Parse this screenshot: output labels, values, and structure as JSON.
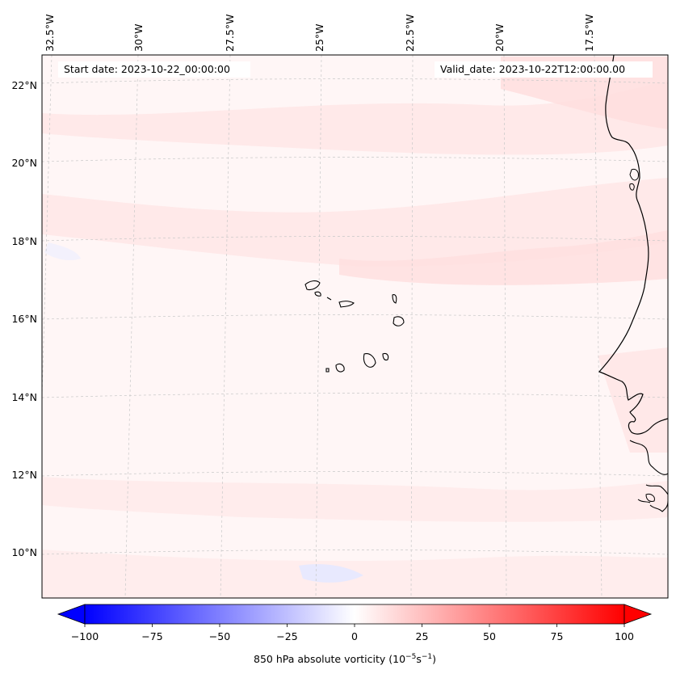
{
  "map": {
    "start_date": "Start date: 2023-10-22_00:00:00",
    "valid_date": "Valid_date: 2023-10-22T12:00:00.00",
    "longitude_labels": [
      "32.5°W",
      "30°W",
      "27.5°W",
      "25°W",
      "22.5°W",
      "20°W",
      "17.5°W"
    ],
    "latitude_labels": [
      "22°N",
      "20°N",
      "18°N",
      "16°N",
      "14°N",
      "12°N",
      "10°N"
    ],
    "colors": {
      "land_outline": "#000000",
      "grid": "#bbbbbb",
      "background_field": "#fff5f5",
      "positive_field": "#ffe0e0",
      "negative_field": "#eef0ff"
    }
  },
  "colorbar": {
    "ticks": [
      "−100",
      "−75",
      "−50",
      "−25",
      "0",
      "25",
      "50",
      "75",
      "100"
    ],
    "label": "850 hPa absolute vorticity (10",
    "label_exp1": "−5",
    "label_mid": "s",
    "label_exp2": "−1",
    "label_end": ")",
    "range": [
      -100,
      100
    ],
    "colormap": "bwr"
  }
}
